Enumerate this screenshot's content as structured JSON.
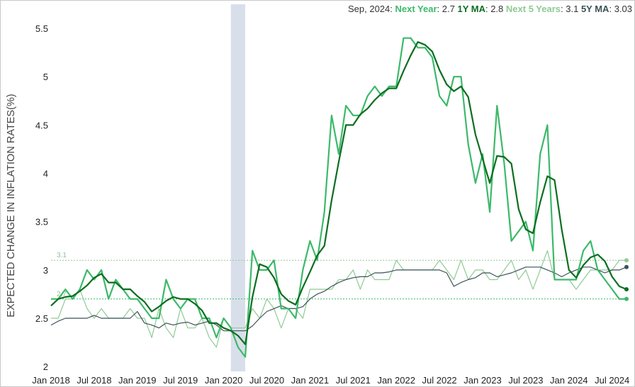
{
  "legend": {
    "date": "Sep, 2024:",
    "items": [
      {
        "label": "Next Year",
        "value": "2.7",
        "color": "#3cb96a"
      },
      {
        "label": "1Y MA",
        "value": "2.8",
        "color": "#0b6e1f"
      },
      {
        "label": "Next 5 Years",
        "value": "3.1",
        "color": "#8fca94"
      },
      {
        "label": "5Y MA",
        "value": "3.03",
        "color": "#3a5258"
      }
    ]
  },
  "chart_data": {
    "type": "line",
    "ylabel": "EXPECTED CHANGE IN INFLATION RATES(%)",
    "ylim": [
      1.95,
      5.75
    ],
    "yticks": [
      "2",
      "2.5",
      "3",
      "3.5",
      "4",
      "4.5",
      "5",
      "5.5"
    ],
    "x_start": "Jan 2018",
    "xticks": [
      "Jan 2018",
      "Jul 2018",
      "Jan 2019",
      "Jul 2019",
      "Jan 2020",
      "Jul 2020",
      "Jan 2021",
      "Jul 2021",
      "Jan 2022",
      "Jul 2022",
      "Jan 2023",
      "Jul 2023",
      "Jan 2024",
      "Jul 2024"
    ],
    "recession_shading": [
      "Feb 2020",
      "Apr 2020"
    ],
    "reference_lines": [
      {
        "value": 3.1,
        "label": "3.1",
        "color": "#8fca94"
      },
      {
        "value": 2.7,
        "label": "2.7",
        "color": "#3cb96a"
      }
    ],
    "grid": false,
    "series": [
      {
        "name": "Next Year",
        "color": "#3cb96a",
        "values": [
          2.7,
          2.7,
          2.8,
          2.7,
          2.8,
          3.0,
          2.9,
          3.0,
          2.7,
          2.9,
          2.8,
          2.7,
          2.7,
          2.6,
          2.5,
          2.5,
          2.9,
          2.7,
          2.6,
          2.7,
          2.7,
          2.5,
          2.5,
          2.3,
          2.5,
          2.4,
          2.2,
          2.1,
          3.2,
          3.0,
          3.0,
          3.1,
          2.6,
          2.6,
          2.5,
          3.0,
          3.3,
          3.1,
          3.6,
          4.6,
          4.2,
          4.7,
          4.6,
          4.6,
          4.8,
          4.9,
          4.8,
          4.9,
          4.9,
          5.4,
          5.4,
          5.3,
          5.3,
          5.2,
          4.8,
          4.7,
          5.0,
          5.0,
          4.3,
          3.9,
          4.2,
          3.6,
          4.7,
          4.1,
          3.3,
          3.4,
          3.5,
          3.2,
          4.2,
          4.5,
          2.9,
          2.9,
          2.9,
          2.9,
          3.2,
          3.3,
          3.0,
          2.9,
          2.8,
          2.7,
          2.7
        ]
      },
      {
        "name": "1Y MA",
        "color": "#0b6e1f",
        "values": [
          2.63,
          2.7,
          2.72,
          2.73,
          2.78,
          2.84,
          2.92,
          2.96,
          2.87,
          2.87,
          2.8,
          2.8,
          2.73,
          2.67,
          2.57,
          2.62,
          2.68,
          2.72,
          2.7,
          2.7,
          2.65,
          2.58,
          2.45,
          2.45,
          2.4,
          2.37,
          2.32,
          2.23,
          2.72,
          3.06,
          3.03,
          2.92,
          2.75,
          2.68,
          2.64,
          2.82,
          2.98,
          3.15,
          3.25,
          3.72,
          4.12,
          4.5,
          4.5,
          4.61,
          4.67,
          4.76,
          4.83,
          4.88,
          4.88,
          5.06,
          5.22,
          5.36,
          5.33,
          5.26,
          5.07,
          4.92,
          4.85,
          4.9,
          4.79,
          4.4,
          4.15,
          3.9,
          4.18,
          4.17,
          4.1,
          3.63,
          3.42,
          3.38,
          3.7,
          3.97,
          3.93,
          3.42,
          3.0,
          2.92,
          3.05,
          3.13,
          3.16,
          3.09,
          2.93,
          2.83,
          2.8
        ]
      },
      {
        "name": "Next 5 Years",
        "color": "#8fca94",
        "values": [
          2.5,
          2.5,
          2.7,
          2.7,
          2.8,
          2.6,
          2.5,
          2.6,
          2.5,
          2.5,
          2.5,
          2.6,
          2.5,
          2.5,
          2.3,
          2.6,
          2.4,
          2.3,
          2.6,
          2.4,
          2.4,
          2.5,
          2.3,
          2.2,
          2.5,
          2.4,
          2.4,
          2.4,
          2.6,
          2.5,
          2.7,
          2.6,
          2.4,
          2.6,
          2.6,
          2.5,
          2.8,
          2.8,
          2.8,
          2.8,
          2.9,
          2.9,
          3.0,
          2.8,
          3.0,
          2.9,
          2.9,
          2.9,
          3.1,
          3.0,
          3.0,
          3.0,
          3.0,
          3.0,
          3.1,
          3.0,
          2.9,
          3.1,
          2.9,
          3.0,
          3.0,
          2.9,
          2.9,
          3.0,
          3.1,
          2.9,
          3.0,
          2.8,
          3.0,
          3.2,
          2.9,
          2.9,
          2.9,
          2.8,
          2.9,
          3.0,
          3.0,
          3.0,
          3.0,
          3.1,
          3.1
        ]
      },
      {
        "name": "5Y MA",
        "color": "#3a5258",
        "values": [
          2.43,
          2.47,
          2.5,
          2.5,
          2.5,
          2.5,
          2.53,
          2.5,
          2.5,
          2.5,
          2.5,
          2.5,
          2.57,
          2.45,
          2.43,
          2.4,
          2.45,
          2.43,
          2.45,
          2.46,
          2.43,
          2.45,
          2.47,
          2.43,
          2.37,
          2.37,
          2.37,
          2.37,
          2.42,
          2.5,
          2.57,
          2.6,
          2.63,
          2.6,
          2.6,
          2.62,
          2.7,
          2.75,
          2.78,
          2.83,
          2.87,
          2.9,
          2.92,
          2.93,
          2.93,
          2.97,
          2.97,
          2.98,
          3.0,
          3.0,
          3.0,
          3.0,
          3.0,
          3.0,
          3.0,
          2.97,
          2.83,
          2.87,
          2.9,
          2.92,
          2.97,
          2.97,
          2.93,
          2.95,
          2.97,
          3.0,
          3.03,
          3.03,
          3.03,
          3.0,
          2.97,
          2.93,
          2.97,
          3.0,
          3.03,
          3.03,
          3.0,
          2.97,
          3.0,
          3.0,
          3.03
        ]
      }
    ]
  }
}
